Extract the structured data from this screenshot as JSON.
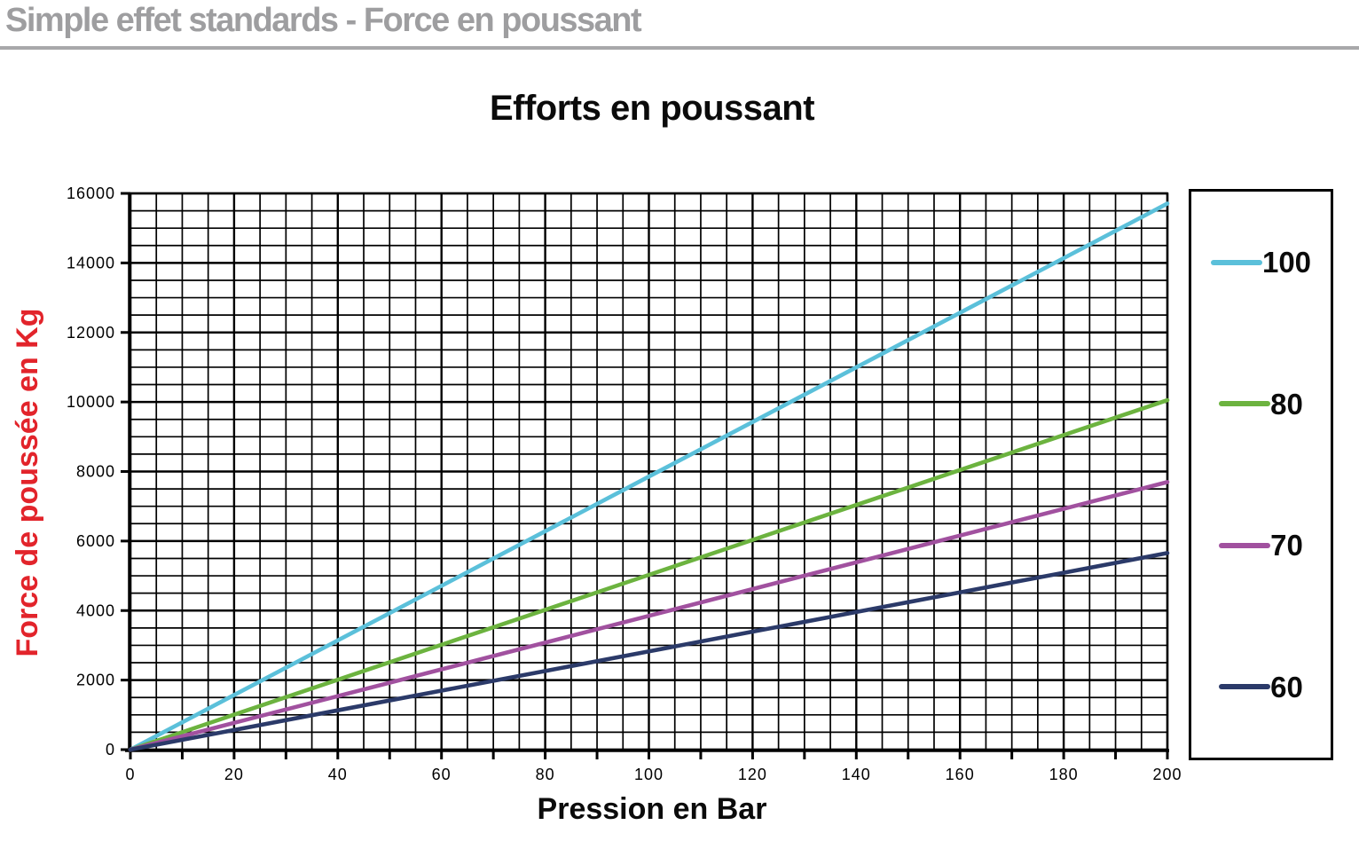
{
  "header": {
    "title": "Simple effet standards - Force en poussant"
  },
  "chart_data": {
    "type": "line",
    "title": "Efforts en poussant",
    "xlabel": "Pression en Bar",
    "ylabel": "Force de poussée en Kg",
    "xlim": [
      0,
      200
    ],
    "ylim": [
      0,
      16000
    ],
    "x_tick_labels": [
      0,
      20,
      40,
      60,
      80,
      100,
      120,
      140,
      160,
      180,
      200
    ],
    "y_tick_labels": [
      0,
      2000,
      4000,
      6000,
      8000,
      10000,
      12000,
      14000,
      16000
    ],
    "x_minor_step": 5,
    "y_minor_step": 500,
    "x_tick_step": 10,
    "y_tick_step": 2000,
    "grid": true,
    "legend_position": "right",
    "x": [
      0,
      20,
      40,
      60,
      80,
      100,
      120,
      140,
      160,
      180,
      200
    ],
    "series": [
      {
        "name": "100",
        "color": "#5bc0da",
        "values": [
          0,
          1571,
          3142,
          4712,
          6283,
          7854,
          9425,
          10996,
          12566,
          14137,
          15708
        ]
      },
      {
        "name": "80",
        "color": "#6cb33f",
        "values": [
          0,
          1005,
          2011,
          3016,
          4021,
          5027,
          6032,
          7037,
          8042,
          9048,
          10053
        ]
      },
      {
        "name": "70",
        "color": "#a1519f",
        "values": [
          0,
          770,
          1539,
          2309,
          3079,
          3848,
          4618,
          5388,
          6158,
          6927,
          7697
        ]
      },
      {
        "name": "60",
        "color": "#2b3a69",
        "values": [
          0,
          565,
          1131,
          1696,
          2262,
          2827,
          3393,
          3958,
          4524,
          5089,
          5655
        ]
      }
    ]
  },
  "colors": {
    "header_text": "#9e9ea0",
    "header_rule": "#a8a8aa",
    "ylabel_red": "#e2242b",
    "grid_black": "#000000"
  }
}
